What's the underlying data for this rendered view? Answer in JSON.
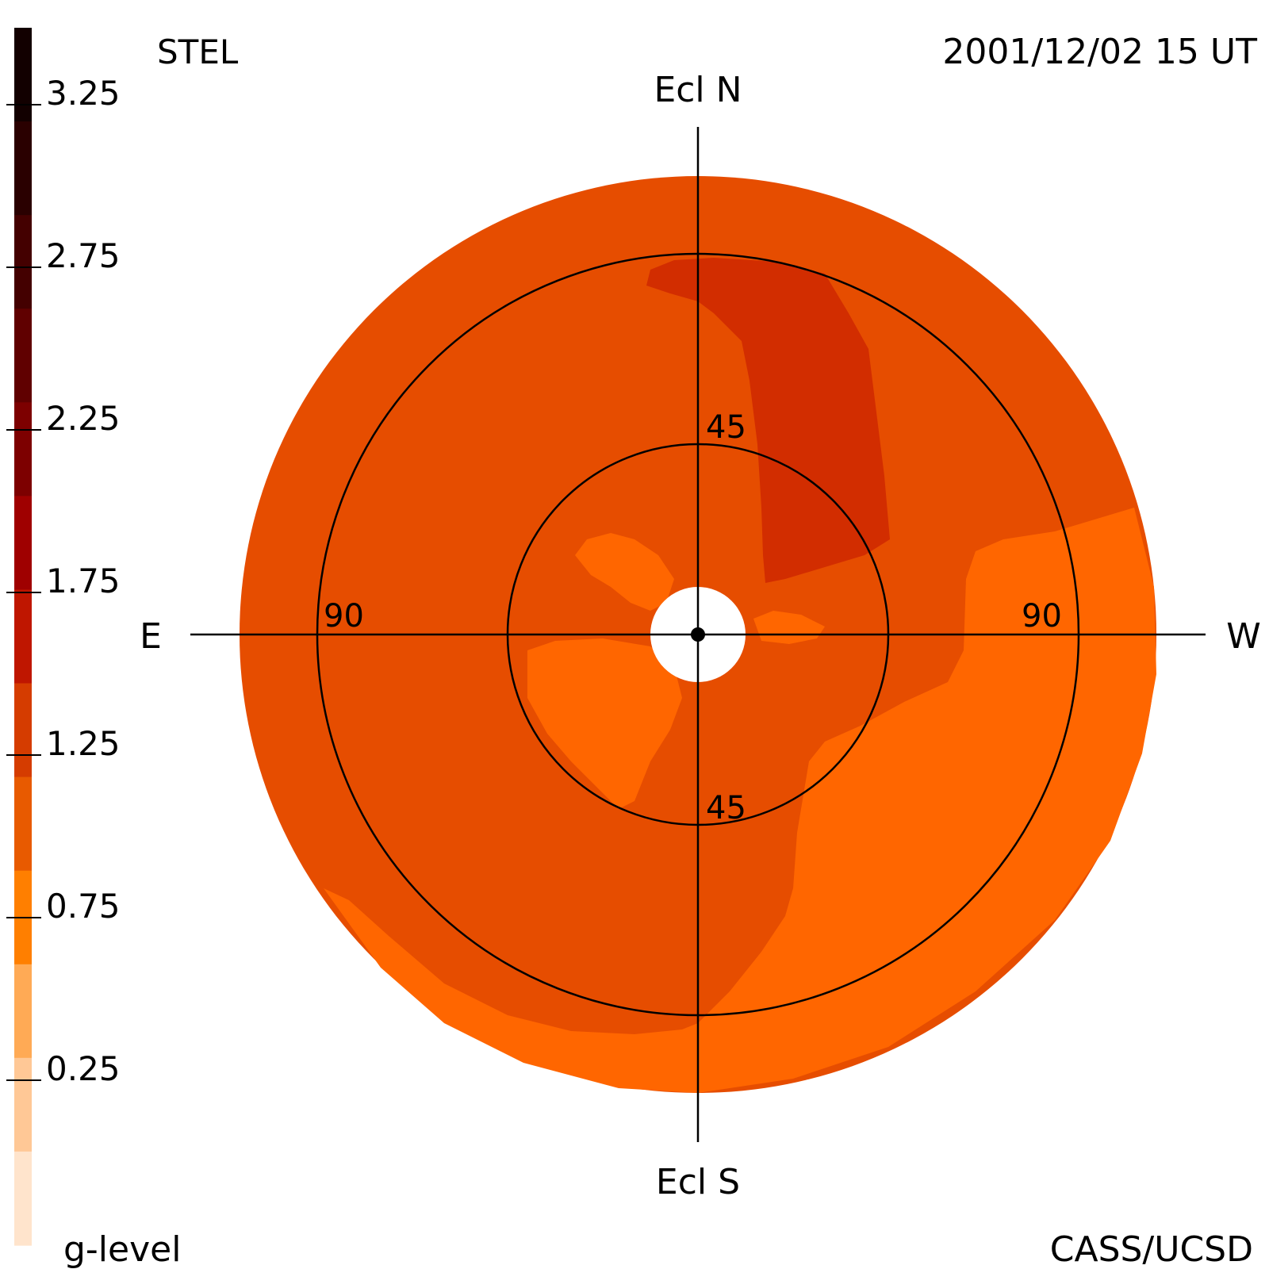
{
  "header": {
    "instrument": "STEL",
    "timestamp": "2001/12/02 15 UT"
  },
  "footer": {
    "colorbar_label": "g-level",
    "credit": "CASS/UCSD"
  },
  "directions": {
    "north": "Ecl N",
    "south": "Ecl S",
    "east": "E",
    "west": "W"
  },
  "rings": {
    "inner_label_top": "45",
    "inner_label_bottom": "45",
    "outer_label_east": "90",
    "outer_label_west": "90"
  },
  "colorbar": {
    "tick_labels": [
      "3.25",
      "2.75",
      "2.25",
      "1.75",
      "1.25",
      "0.75",
      "0.25"
    ],
    "colors_top_to_bottom": [
      "#120000",
      "#2a0000",
      "#440000",
      "#600000",
      "#7d0000",
      "#9f0000",
      "#bf1600",
      "#d53c00",
      "#e85a00",
      "#ff7f00",
      "#ffaa55",
      "#ffc896",
      "#ffe4cc"
    ]
  },
  "map_colors": {
    "outer_disk": "#e64d00",
    "enhancement": "#d22d00",
    "depletion": "#ff6600",
    "occulter": "#ffffff",
    "line": "#000000"
  }
}
